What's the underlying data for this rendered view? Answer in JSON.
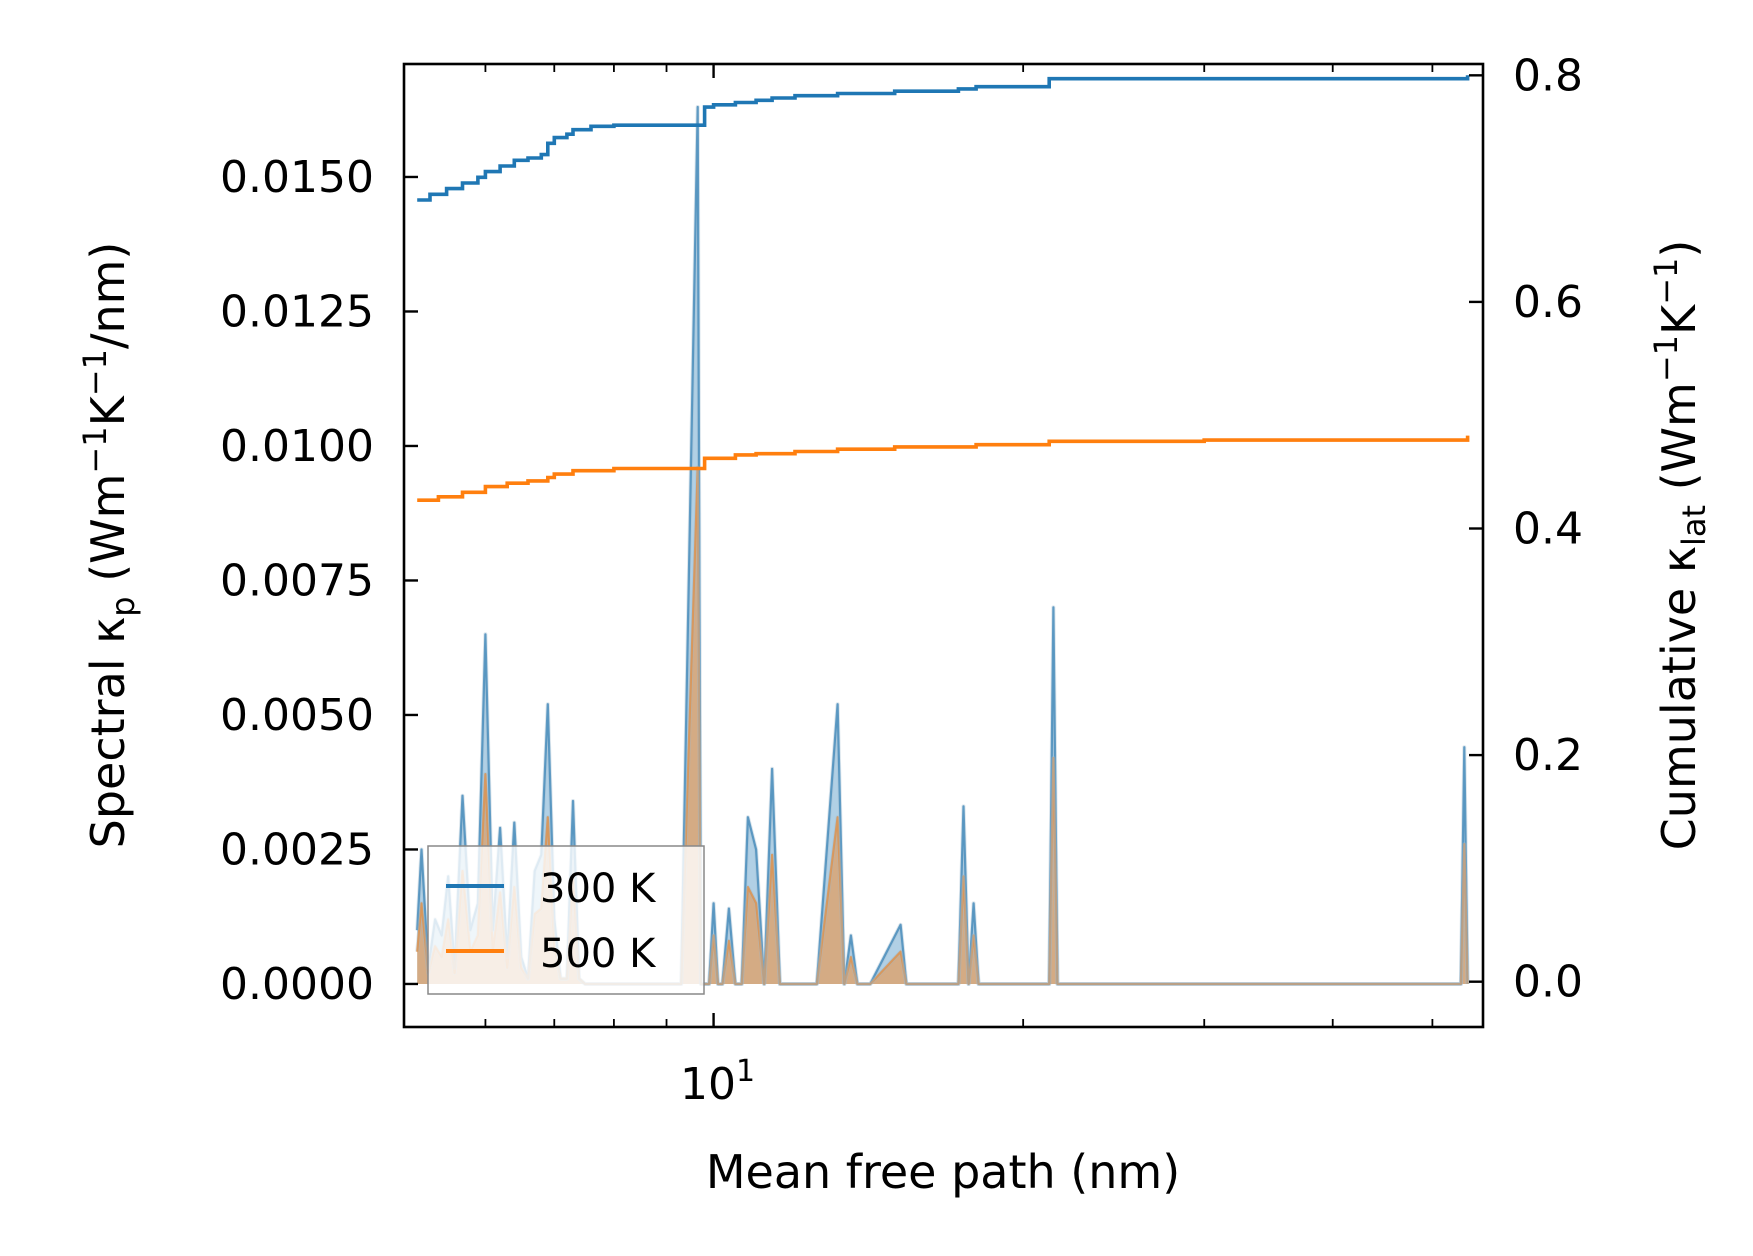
{
  "chart_data": {
    "type": "line",
    "xlabel": "Mean free path (nm)",
    "ylabel_left": {
      "main": "Spectral κ",
      "sub": "p",
      "unit_pre": " (Wm",
      "sup1": "−1",
      "mid": "K",
      "sup2": "−1",
      "post": "/nm)"
    },
    "ylabel_right": {
      "main": "Cumulative κ",
      "sub": "lat",
      "unit_pre": " (Wm",
      "sup1": "−1",
      "mid": "K",
      "sup2": "−1",
      "post": ")"
    },
    "xscale": "log",
    "xlim": [
      5.0,
      56.0
    ],
    "ylim_left": [
      -0.0008,
      0.0171
    ],
    "ylim_right": [
      -0.04,
      0.81
    ],
    "x_major_tick": {
      "value": 10,
      "base": "10",
      "exp": "1"
    },
    "x_minor_ticks": [
      5,
      6,
      7,
      8,
      9,
      20,
      30,
      40,
      50
    ],
    "y_left_ticks": [
      {
        "value": 0.0,
        "label": "0.0000"
      },
      {
        "value": 0.0025,
        "label": "0.0025"
      },
      {
        "value": 0.005,
        "label": "0.0050"
      },
      {
        "value": 0.0075,
        "label": "0.0075"
      },
      {
        "value": 0.01,
        "label": "0.0100"
      },
      {
        "value": 0.0125,
        "label": "0.0125"
      },
      {
        "value": 0.015,
        "label": "0.0150"
      }
    ],
    "y_right_ticks": [
      {
        "value": 0.0,
        "label": "0.0"
      },
      {
        "value": 0.2,
        "label": "0.2"
      },
      {
        "value": 0.4,
        "label": "0.4"
      },
      {
        "value": 0.6,
        "label": "0.6"
      },
      {
        "value": 0.8,
        "label": "0.8"
      }
    ],
    "legend": {
      "location": "lower-left",
      "entries": [
        {
          "label": "300 K",
          "color": "#1f77b4"
        },
        {
          "label": "500 K",
          "color": "#ff7f0e"
        }
      ]
    },
    "spectral_x": [
      5.15,
      5.2,
      5.28,
      5.36,
      5.44,
      5.52,
      5.6,
      5.7,
      5.8,
      5.9,
      6.0,
      6.1,
      6.2,
      6.3,
      6.4,
      6.5,
      6.6,
      6.7,
      6.8,
      6.9,
      7.0,
      7.1,
      7.2,
      7.3,
      7.4,
      7.5,
      7.6,
      7.7,
      7.8,
      7.9,
      8.0,
      8.1,
      8.2,
      8.3,
      8.5,
      8.7,
      9.0,
      9.3,
      9.65,
      9.72,
      9.8,
      9.9,
      10.0,
      10.1,
      10.2,
      10.35,
      10.5,
      10.65,
      10.8,
      11.0,
      11.2,
      11.4,
      11.6,
      11.8,
      12.0,
      12.2,
      12.4,
      12.6,
      13.2,
      13.4,
      13.6,
      13.8,
      14.0,
      14.2,
      15.2,
      15.4,
      15.6,
      17.3,
      17.5,
      17.7,
      17.9,
      18.1,
      18.3,
      18.5,
      21.2,
      21.4,
      21.6,
      53.3,
      53.7,
      54.1
    ],
    "series": [
      {
        "name": "300 K",
        "color": "#1f77b4",
        "spectral": [
          0.001,
          0.0025,
          0.0003,
          0.0012,
          0.0009,
          0.002,
          0.0003,
          0.0035,
          0.001,
          0.0015,
          0.0065,
          0.001,
          0.0029,
          0.0005,
          0.003,
          0.0005,
          0.0001,
          0.0021,
          0.0024,
          0.0052,
          0.0012,
          0.0001,
          0.0001,
          0.0034,
          0.0001,
          0.0,
          0.0,
          0.0,
          0.0,
          0.0,
          0.0,
          0.0,
          0.0,
          0.0,
          0.0,
          0.0,
          0.0,
          0.0,
          0.0163,
          0.0,
          0.0,
          0.0,
          0.0015,
          0.0,
          0.0,
          0.0014,
          0.0,
          0.0,
          0.0031,
          0.0025,
          0.0,
          0.004,
          0.0,
          0.0,
          0.0,
          0.0,
          0.0,
          0.0,
          0.0052,
          0.0,
          0.0009,
          0.0,
          0.0,
          0.0,
          0.0011,
          0.0,
          0.0,
          0.0,
          0.0033,
          0.0,
          0.0015,
          0.0,
          0.0,
          0.0,
          0.0,
          0.007,
          0.0,
          0.0,
          0.0044,
          0.0
        ],
        "cumulative": {
          "x": [
            5.15,
            5.3,
            5.5,
            5.7,
            5.9,
            6.0,
            6.2,
            6.4,
            6.6,
            6.8,
            6.9,
            7.0,
            7.2,
            7.3,
            7.6,
            8.0,
            9.0,
            9.65,
            9.8,
            10.0,
            10.5,
            11.0,
            11.4,
            12.0,
            13.2,
            15.0,
            17.3,
            18.0,
            21.2,
            24.0,
            30.0,
            40.0,
            53.3,
            54.1
          ],
          "y": [
            0.69,
            0.695,
            0.7,
            0.705,
            0.71,
            0.715,
            0.72,
            0.725,
            0.727,
            0.73,
            0.74,
            0.745,
            0.748,
            0.752,
            0.755,
            0.756,
            0.756,
            0.756,
            0.772,
            0.774,
            0.776,
            0.778,
            0.78,
            0.782,
            0.784,
            0.786,
            0.788,
            0.79,
            0.797,
            0.797,
            0.797,
            0.797,
            0.797,
            0.8
          ]
        }
      },
      {
        "name": "500 K",
        "color": "#ff7f0e",
        "spectral": [
          0.0006,
          0.0015,
          0.0002,
          0.0007,
          0.0005,
          0.0012,
          0.0002,
          0.0021,
          0.0006,
          0.0009,
          0.0039,
          0.0006,
          0.0017,
          0.0003,
          0.0018,
          0.0003,
          0.0001,
          0.0013,
          0.0014,
          0.0031,
          0.0007,
          0.0001,
          0.0001,
          0.002,
          0.0001,
          0.0,
          0.0,
          0.0,
          0.0,
          0.0,
          0.0,
          0.0,
          0.0,
          0.0,
          0.0,
          0.0,
          0.0,
          0.0,
          0.0096,
          0.0,
          0.0,
          0.0,
          0.0009,
          0.0,
          0.0,
          0.0008,
          0.0,
          0.0,
          0.0018,
          0.0015,
          0.0,
          0.0024,
          0.0,
          0.0,
          0.0,
          0.0,
          0.0,
          0.0,
          0.0031,
          0.0,
          0.0005,
          0.0,
          0.0,
          0.0,
          0.0006,
          0.0,
          0.0,
          0.0,
          0.002,
          0.0,
          0.0009,
          0.0,
          0.0,
          0.0,
          0.0,
          0.0042,
          0.0,
          0.0,
          0.0026,
          0.0
        ],
        "cumulative": {
          "x": [
            5.15,
            5.4,
            5.7,
            6.0,
            6.3,
            6.6,
            6.9,
            7.0,
            7.3,
            8.0,
            9.0,
            9.65,
            9.8,
            10.5,
            11.0,
            12.0,
            13.2,
            15.0,
            18.0,
            21.2,
            30.0,
            53.3,
            54.1
          ],
          "y": [
            0.425,
            0.428,
            0.432,
            0.437,
            0.44,
            0.442,
            0.445,
            0.448,
            0.451,
            0.453,
            0.453,
            0.453,
            0.462,
            0.465,
            0.466,
            0.468,
            0.47,
            0.472,
            0.474,
            0.477,
            0.478,
            0.478,
            0.482
          ]
        }
      }
    ]
  }
}
